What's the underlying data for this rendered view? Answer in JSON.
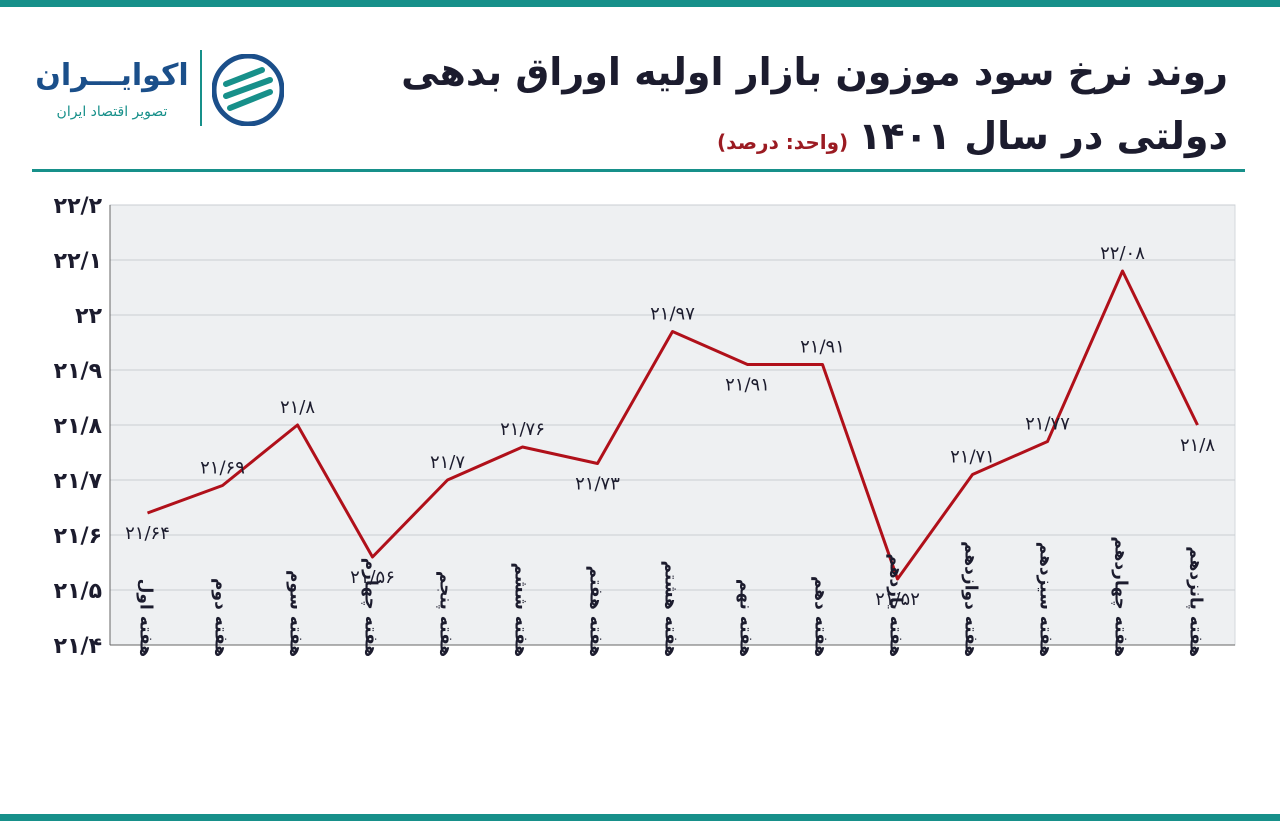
{
  "header": {
    "logo_name": "اکوایـــران",
    "logo_tagline": "تصویر اقتصاد ایران"
  },
  "chart_data": {
    "type": "line",
    "title": [
      "روند نرخ سود موزون بازار اولیه اوراق بدهی",
      "دولتی در سال ۱۴۰۱"
    ],
    "subtitle": "(واحد: درصد)",
    "categories": [
      "هفته اول",
      "هفته دوم",
      "هفته سوم",
      "هفته چهارم",
      "هفته پنجم",
      "هفته ششم",
      "هفته هفتم",
      "هفته هشتم",
      "هفته نهم",
      "هفته دهم",
      "هفته یازدهم",
      "هفته دوازدهم",
      "هفته سیزدهم",
      "هفته چهاردهم",
      "هفته پانزدهم"
    ],
    "values": [
      21.64,
      21.69,
      21.8,
      21.56,
      21.7,
      21.76,
      21.73,
      21.97,
      21.91,
      21.91,
      21.52,
      21.71,
      21.77,
      22.08,
      21.8
    ],
    "value_labels": [
      "۲۱/۶۴",
      "۲۱/۶۹",
      "۲۱/۸",
      "۲۱/۵۶",
      "۲۱/۷",
      "۲۱/۷۶",
      "۲۱/۷۳",
      "۲۱/۹۷",
      "۲۱/۹۱",
      "۲۱/۹۱",
      "۲۱/۵۲",
      "۲۱/۷۱",
      "۲۱/۷۷",
      "۲۲/۰۸",
      "۲۱/۸"
    ],
    "color": "#b0101a",
    "ylim": [
      21.4,
      22.2
    ],
    "yticks": [
      {
        "value": 21.4,
        "label": "۲۱/۴"
      },
      {
        "value": 21.5,
        "label": "۲۱/۵"
      },
      {
        "value": 21.6,
        "label": "۲۱/۶"
      },
      {
        "value": 21.7,
        "label": "۲۱/۷"
      },
      {
        "value": 21.8,
        "label": "۲۱/۸"
      },
      {
        "value": 21.9,
        "label": "۲۱/۹"
      },
      {
        "value": 22,
        "label": "۲۲"
      },
      {
        "value": 22.1,
        "label": "۲۲/۱"
      },
      {
        "value": 22.2,
        "label": "۲۲/۲"
      }
    ],
    "grid": true
  }
}
